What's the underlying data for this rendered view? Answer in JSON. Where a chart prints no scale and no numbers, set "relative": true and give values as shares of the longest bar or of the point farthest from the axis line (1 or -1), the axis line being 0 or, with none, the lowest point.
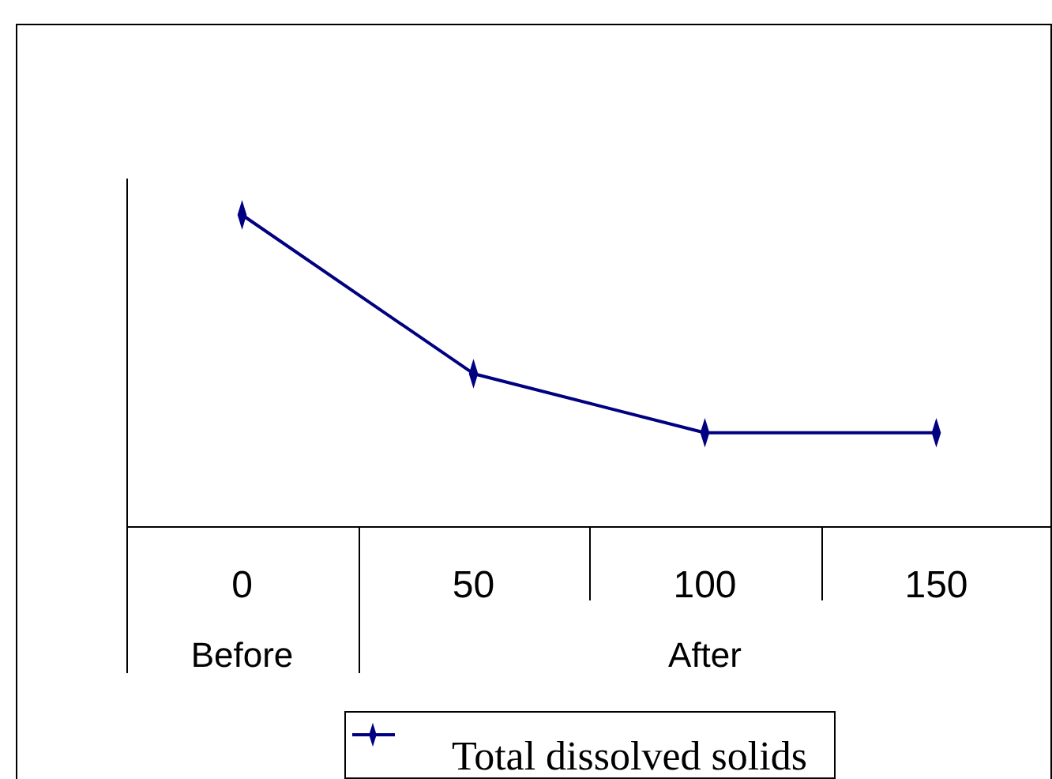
{
  "chart_data": {
    "type": "line",
    "categories": [
      "0",
      "50",
      "100",
      "150"
    ],
    "series": [
      {
        "name": "Total dissolved solids",
        "color": "#000080",
        "values": [
          1,
          0.49,
          0.3,
          0.3
        ]
      }
    ],
    "relative": true,
    "annotations": [
      "Before",
      "After"
    ],
    "marker": "diamond",
    "legend": "bottom",
    "grid": false
  }
}
